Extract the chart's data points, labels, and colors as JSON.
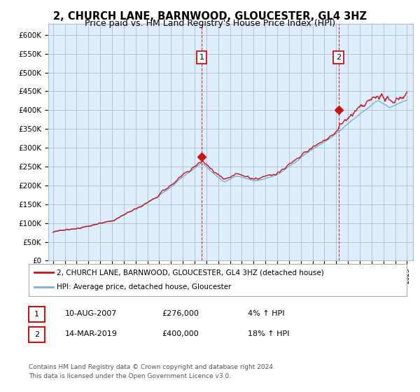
{
  "title": "2, CHURCH LANE, BARNWOOD, GLOUCESTER, GL4 3HZ",
  "subtitle": "Price paid vs. HM Land Registry's House Price Index (HPI)",
  "title_fontsize": 10.5,
  "subtitle_fontsize": 9,
  "ylabel_ticks": [
    "£0",
    "£50K",
    "£100K",
    "£150K",
    "£200K",
    "£250K",
    "£300K",
    "£350K",
    "£400K",
    "£450K",
    "£500K",
    "£550K",
    "£600K"
  ],
  "ytick_values": [
    0,
    50000,
    100000,
    150000,
    200000,
    250000,
    300000,
    350000,
    400000,
    450000,
    500000,
    550000,
    600000
  ],
  "ylim": [
    0,
    630000
  ],
  "sale1_date": 2007.6,
  "sale1_price": 276000,
  "sale1_label": "1",
  "sale2_date": 2019.2,
  "sale2_price": 400000,
  "sale2_label": "2",
  "hpi_color": "#7bafd4",
  "price_color": "#cc1111",
  "marker_color": "#cc1111",
  "dashed_color": "#cc1111",
  "bg_color": "#ffffff",
  "chart_bg_color": "#ddeeff",
  "grid_color": "#aabbcc",
  "legend_label_price": "2, CHURCH LANE, BARNWOOD, GLOUCESTER, GL4 3HZ (detached house)",
  "legend_label_hpi": "HPI: Average price, detached house, Gloucester",
  "footer1": "Contains HM Land Registry data © Crown copyright and database right 2024.",
  "footer2": "This data is licensed under the Open Government Licence v3.0.",
  "table_row1": [
    "1",
    "10-AUG-2007",
    "£276,000",
    "4% ↑ HPI"
  ],
  "table_row2": [
    "2",
    "14-MAR-2019",
    "£400,000",
    "18% ↑ HPI"
  ]
}
